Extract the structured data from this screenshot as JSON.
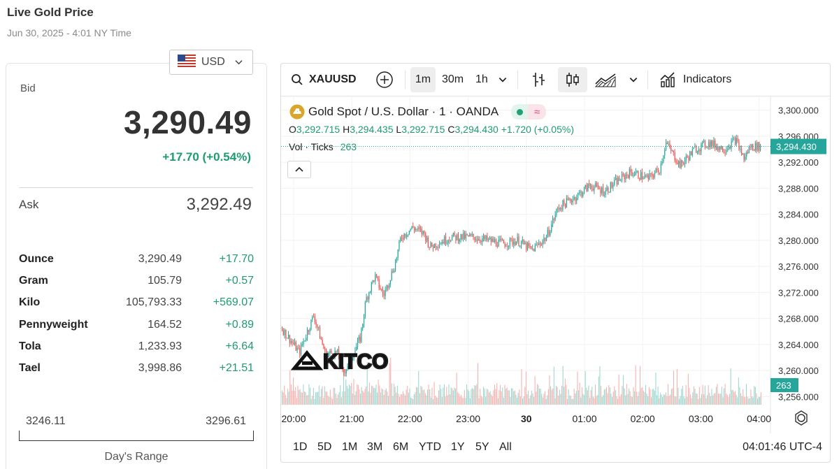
{
  "header": {
    "title": "Live Gold Price",
    "subtitle": "Jun 30, 2025 - 4:01 NY Time"
  },
  "currency": {
    "code": "USD"
  },
  "quote": {
    "bid_label": "Bid",
    "bid": "3,290.49",
    "change": "+17.70 (+0.54%)",
    "ask_label": "Ask",
    "ask": "3,292.49"
  },
  "units": [
    {
      "name": "Ounce",
      "price": "3,290.49",
      "change": "+17.70"
    },
    {
      "name": "Gram",
      "price": "105.79",
      "change": "+0.57"
    },
    {
      "name": "Kilo",
      "price": "105,793.33",
      "change": "+569.07"
    },
    {
      "name": "Pennyweight",
      "price": "164.52",
      "change": "+0.89"
    },
    {
      "name": "Tola",
      "price": "1,233.93",
      "change": "+6.64"
    },
    {
      "name": "Tael",
      "price": "3,998.86",
      "change": "+21.51"
    }
  ],
  "day_range": {
    "low": "3246.11",
    "high": "3296.61",
    "label": "Day's Range"
  },
  "toolbar": {
    "symbol": "XAUUSD",
    "intervals": [
      "1m",
      "30m",
      "1h"
    ],
    "indicators_label": "Indicators"
  },
  "legend": {
    "title": "Gold Spot / U.S. Dollar · 1 · OANDA",
    "o_label": "O",
    "o": "3,292.715",
    "h_label": "H",
    "h": "3,294.435",
    "l_label": "L",
    "l": "3,292.715",
    "c_label": "C",
    "c": "3,294.430",
    "chg": "+1.720 (+0.05%)",
    "vol_label": "Vol · Ticks",
    "vol": "263"
  },
  "watermark": "KITCO",
  "colors": {
    "up": "#26a69a",
    "down": "#ef5350",
    "accent": "#1e9b70"
  },
  "bottom": {
    "periods": [
      "1D",
      "5D",
      "1M",
      "3M",
      "6M",
      "YTD",
      "1Y",
      "5Y",
      "All"
    ],
    "clock": "04:01:46 UTC-4"
  },
  "chart_data": {
    "type": "candlestick",
    "symbol": "XAUUSD",
    "interval": "1m",
    "y_ticks": [
      "3,300.000",
      "3,296.000",
      "3,292.000",
      "3,288.000",
      "3,284.000",
      "3,280.000",
      "3,276.000",
      "3,272.000",
      "3,268.000",
      "3,264.000",
      "3,260.000",
      "3,256.000"
    ],
    "ylim": [
      3255,
      3301
    ],
    "x_ticks": [
      "20:00",
      "21:00",
      "22:00",
      "23:00",
      "30",
      "01:00",
      "02:00",
      "03:00",
      "04:00"
    ],
    "last_price": "3,294.430",
    "last_volume": "263",
    "price_path": [
      [
        0,
        3266.5
      ],
      [
        0.3,
        3262.8
      ],
      [
        0.55,
        3268.5
      ],
      [
        0.75,
        3262.5
      ],
      [
        0.95,
        3262.8
      ],
      [
        1.05,
        3259.5
      ],
      [
        1.2,
        3262.0
      ],
      [
        1.35,
        3265.0
      ],
      [
        1.45,
        3271.0
      ],
      [
        1.6,
        3274.5
      ],
      [
        1.75,
        3271.5
      ],
      [
        1.95,
        3276.5
      ],
      [
        2.05,
        3280.5
      ],
      [
        2.25,
        3282.0
      ],
      [
        2.45,
        3281.0
      ],
      [
        2.55,
        3279.0
      ],
      [
        2.9,
        3280.5
      ],
      [
        3.3,
        3280.5
      ],
      [
        3.8,
        3279.5
      ],
      [
        4.05,
        3280.0
      ],
      [
        4.3,
        3278.5
      ],
      [
        4.55,
        3280.5
      ],
      [
        4.75,
        3285.0
      ],
      [
        5.1,
        3287.0
      ],
      [
        5.3,
        3288.5
      ],
      [
        5.55,
        3287.5
      ],
      [
        5.75,
        3289.0
      ],
      [
        6.0,
        3290.5
      ],
      [
        6.3,
        3289.5
      ],
      [
        6.5,
        3291.0
      ],
      [
        6.6,
        3295.0
      ],
      [
        6.85,
        3291.5
      ],
      [
        7.1,
        3294.0
      ],
      [
        7.35,
        3295.0
      ],
      [
        7.6,
        3294.0
      ],
      [
        7.8,
        3295.5
      ],
      [
        7.95,
        3292.5
      ],
      [
        8.05,
        3294.43
      ]
    ]
  }
}
